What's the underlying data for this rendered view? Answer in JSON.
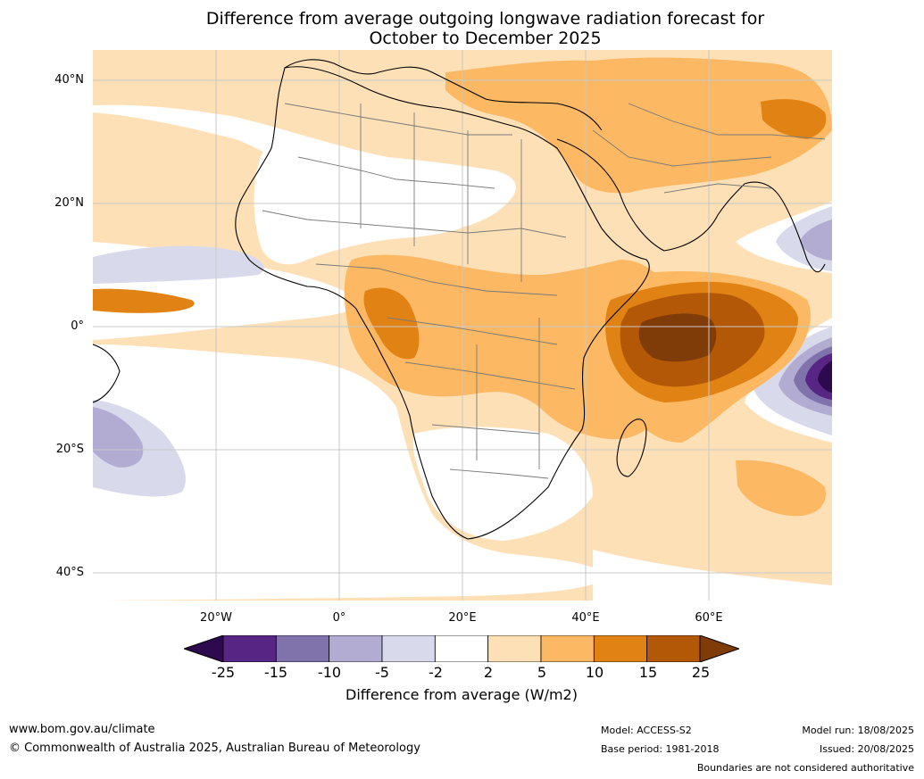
{
  "title_line1": "Difference from average outgoing longwave radiation forecast for",
  "title_line2": "October to December 2025",
  "lat_labels": [
    "40°N",
    "20°N",
    "0°",
    "20°S",
    "40°S"
  ],
  "lon_labels": [
    "20°W",
    "0°",
    "20°E",
    "40°E",
    "60°E"
  ],
  "colorbar": {
    "ticks": [
      "-25",
      "-15",
      "-10",
      "-5",
      "-2",
      "2",
      "5",
      "10",
      "15",
      "25"
    ],
    "colors": [
      "#2d0a4e",
      "#572584",
      "#8073ac",
      "#b2abd2",
      "#d8daeb",
      "#ffffff",
      "#fee0b6",
      "#fdb863",
      "#e08214",
      "#b35806",
      "#7f3b08"
    ],
    "label": "Difference from average (W/m2)"
  },
  "footer": {
    "url": "www.bom.gov.au/climate",
    "copyright": "© Commonwealth of Australia 2025, Australian Bureau of Meteorology",
    "model": "Model: ACCESS-S2",
    "base_period": "Base period: 1981-2018",
    "model_run": "Model run: 18/08/2025",
    "issued": "Issued: 20/08/2025",
    "disclaimer": "Boundaries are not considered authoritative"
  }
}
